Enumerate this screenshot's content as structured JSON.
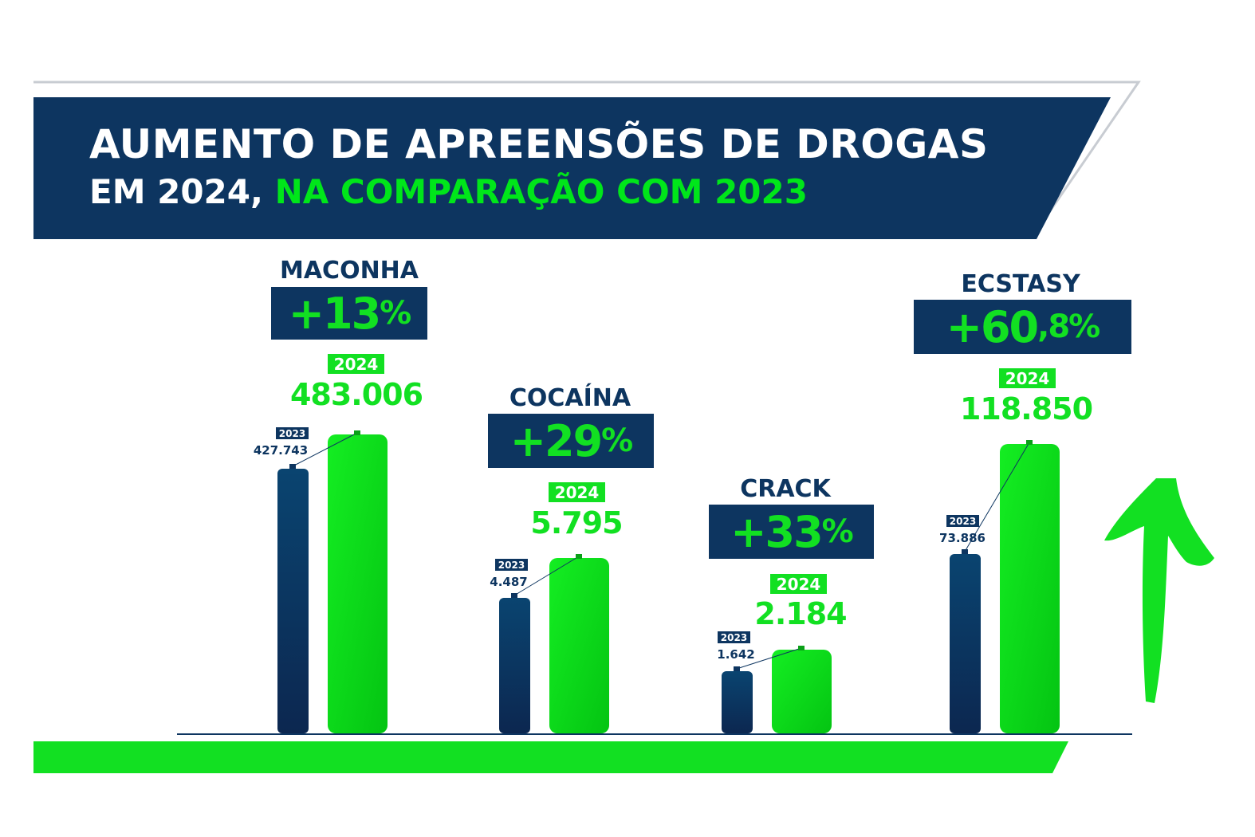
{
  "header": {
    "title_line1": "AUMENTO DE APREENSÕES DE DROGAS",
    "title_line2_white": "EM 2024,",
    "title_line2_green": "NA COMPARAÇÃO COM 2023"
  },
  "colors": {
    "navy": "#0d3560",
    "green": "#12e022",
    "grey_outline": "#c8ccd2"
  },
  "chart_data": {
    "type": "bar",
    "title": "AUMENTO DE APREENSÕES DE DROGAS EM 2024, NA COMPARAÇÃO COM 2023",
    "categories": [
      "MACONHA",
      "COCAÍNA",
      "CRACK",
      "ECSTASY"
    ],
    "series": [
      {
        "name": "2023",
        "values": [
          "427.743",
          "4.487",
          "1.642",
          "73.886"
        ]
      },
      {
        "name": "2024",
        "values": [
          "483.006",
          "5.795",
          "2.184",
          "118.850"
        ]
      }
    ],
    "change": [
      {
        "main": "+13",
        "suffix": "%"
      },
      {
        "main": "+29",
        "suffix": "%"
      },
      {
        "main": "+33",
        "suffix": "%"
      },
      {
        "main": "+60",
        "suffix": ",8%"
      }
    ],
    "year_labels": {
      "prev": "2023",
      "curr": "2024"
    },
    "decoration": "up-arrow"
  }
}
